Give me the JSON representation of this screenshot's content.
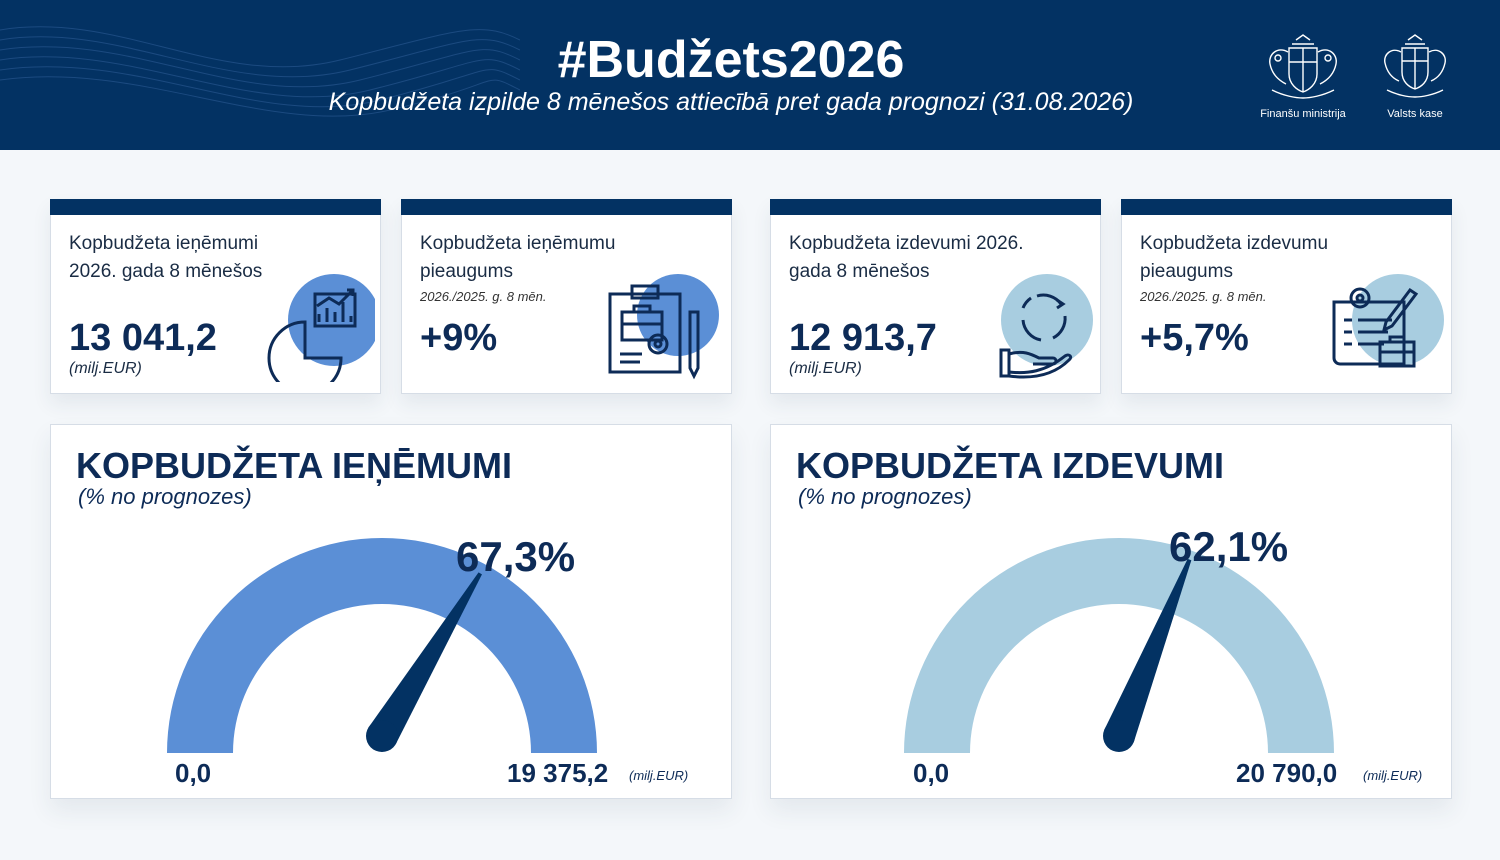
{
  "header": {
    "title": "#Budžets2026",
    "subtitle": "Kopbudžeta izpilde 8 mēnešos attiecībā pret gada prognozi (31.08.2026)",
    "logos": [
      {
        "label": "Finanšu ministrija",
        "icon": "latvia-coat-of-arms-icon"
      },
      {
        "label": "Valsts kase",
        "icon": "latvia-coat-of-arms-icon"
      }
    ]
  },
  "cards": [
    {
      "label": "Kopbudžeta ieņēmumi 2026. gada 8 mēnešos",
      "note": "",
      "value": "13 041,2",
      "unit": "(milj.EUR)",
      "icon": "revenue-chart-icon"
    },
    {
      "label": "Kopbudžeta ieņēmumu pieaugums",
      "note": "2026./2025. g. 8 mēn.",
      "value": "+9%",
      "unit": "",
      "icon": "clipboard-briefcase-icon"
    },
    {
      "label": "Kopbudžeta izdevumi 2026. gada 8 mēnešos",
      "note": "",
      "value": "12 913,7",
      "unit": "(milj.EUR)",
      "icon": "hand-cycle-icon"
    },
    {
      "label": "Kopbudžeta izdevumu pieaugums",
      "note": "2026./2025. g. 8 mēn.",
      "value": "+5,7%",
      "unit": "",
      "icon": "blueprint-gear-icon"
    }
  ],
  "gauges": [
    {
      "title": "KOPBUDŽETA IEŅĒMUMI",
      "subtitle": "(% no prognozes)",
      "percent_label": "67,3%",
      "percent": 67.3,
      "min": "0,0",
      "max": "19 375,2",
      "unit": "(milj.EUR)",
      "color": "#5b8fd6"
    },
    {
      "title": "KOPBUDŽETA IZDEVUMI",
      "subtitle": "(% no prognozes)",
      "percent_label": "62,1%",
      "percent": 62.1,
      "min": "0,0",
      "max": "20 790,0",
      "unit": "(milj.EUR)",
      "color": "#a8cde0"
    }
  ],
  "colors": {
    "navy": "#033263",
    "accent_blue": "#5b8fd6",
    "light_blue": "#a8cde0"
  }
}
